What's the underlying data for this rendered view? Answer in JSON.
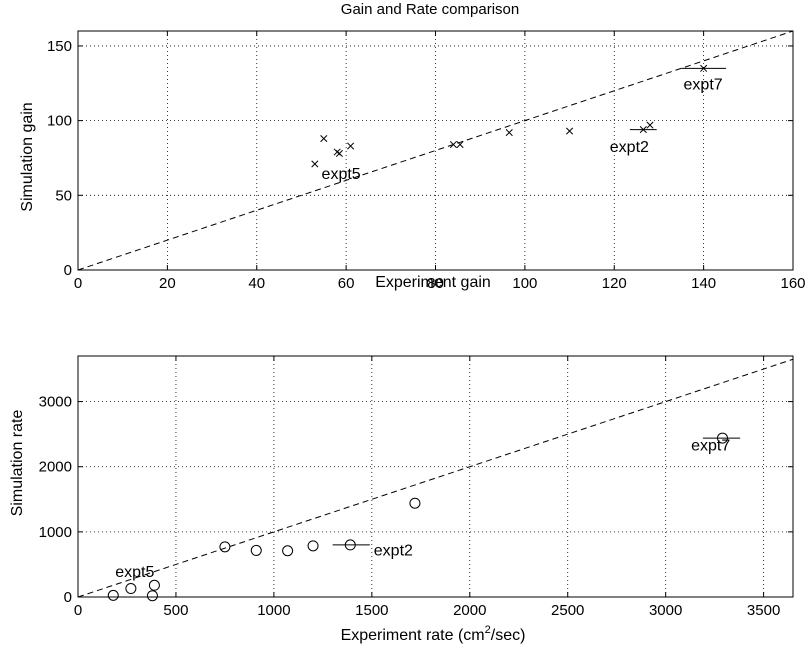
{
  "chart_data": [
    {
      "type": "scatter",
      "title": "Gain and Rate comparison",
      "xlabel": "Experiment gain",
      "ylabel": "Simulation gain",
      "xlim": [
        0,
        160
      ],
      "ylim": [
        0,
        160
      ],
      "xticks": [
        0,
        20,
        40,
        60,
        80,
        100,
        120,
        140,
        160
      ],
      "yticks": [
        0,
        50,
        100,
        150
      ],
      "grid": true,
      "marker": "x",
      "reference_line": {
        "style": "dashed",
        "slope": 1,
        "intercept": 0
      },
      "points": [
        {
          "x": 53,
          "y": 71
        },
        {
          "x": 55,
          "y": 88
        },
        {
          "x": 58,
          "y": 79
        },
        {
          "x": 58.5,
          "y": 78
        },
        {
          "x": 61,
          "y": 83
        },
        {
          "x": 84,
          "y": 84
        },
        {
          "x": 85.5,
          "y": 84
        },
        {
          "x": 96.5,
          "y": 92
        },
        {
          "x": 110,
          "y": 93
        },
        {
          "x": 126.5,
          "y": 94
        },
        {
          "x": 128,
          "y": 97
        },
        {
          "x": 140,
          "y": 135
        }
      ],
      "error_bars": [
        {
          "y": 135,
          "xmin": 135,
          "xmax": 145
        },
        {
          "y": 94,
          "xmin": 123.5,
          "xmax": 129.5
        }
      ],
      "annotations": [
        {
          "text": "expt7",
          "x": 135.5,
          "y": 121
        },
        {
          "text": "expt2",
          "x": 119,
          "y": 79
        },
        {
          "text": "expt5",
          "x": 54.5,
          "y": 61
        }
      ]
    },
    {
      "type": "scatter",
      "title": "",
      "xlabel": "Experiment rate (cm",
      "xlabel_superscript": "2",
      "xlabel_suffix": "/sec)",
      "ylabel": "Simulation rate",
      "xlim": [
        0,
        3650
      ],
      "ylim": [
        0,
        3700
      ],
      "xticks": [
        0,
        500,
        1000,
        1500,
        2000,
        2500,
        3000,
        3500
      ],
      "yticks": [
        0,
        1000,
        2000,
        3000
      ],
      "grid": true,
      "marker": "o",
      "reference_line": {
        "style": "dashed",
        "slope": 1,
        "intercept": 0
      },
      "points": [
        {
          "x": 180,
          "y": 25
        },
        {
          "x": 270,
          "y": 130
        },
        {
          "x": 380,
          "y": 20
        },
        {
          "x": 390,
          "y": 180
        },
        {
          "x": 750,
          "y": 770
        },
        {
          "x": 910,
          "y": 715
        },
        {
          "x": 1070,
          "y": 710
        },
        {
          "x": 1200,
          "y": 785
        },
        {
          "x": 1390,
          "y": 800
        },
        {
          "x": 1720,
          "y": 1440
        },
        {
          "x": 3290,
          "y": 2440
        }
      ],
      "error_bars": [
        {
          "y": 2440,
          "xmin": 3190,
          "xmax": 3380
        },
        {
          "y": 800,
          "xmin": 1300,
          "xmax": 1490
        }
      ],
      "annotations": [
        {
          "text": "expt7",
          "x": 3130,
          "y": 2250
        },
        {
          "text": "expt2",
          "x": 1510,
          "y": 640
        },
        {
          "text": "expt5",
          "x": 190,
          "y": 310
        }
      ]
    }
  ]
}
